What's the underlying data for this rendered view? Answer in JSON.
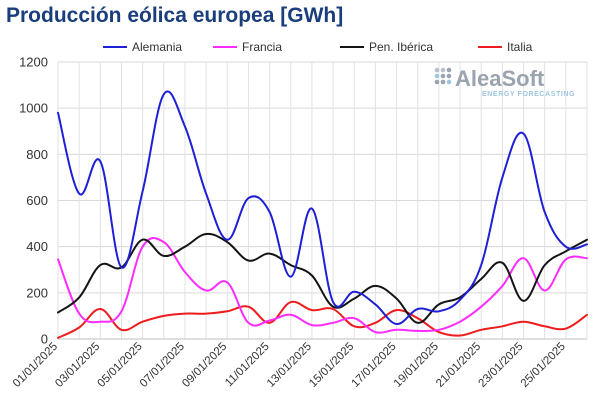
{
  "header": {
    "title": "Producción eólica europea [GWh]"
  },
  "logo": {
    "brand": "AleaSoft",
    "tagline": "ENERGY FORECASTING"
  },
  "colors": {
    "Alemania": "#1f1fd6",
    "Francia": "#ff2cff",
    "Pen. Ibérica": "#141414",
    "Italia": "#ee1c1c"
  },
  "chart_data": {
    "type": "line",
    "title": "Producción eólica europea [GWh]",
    "xlabel": "",
    "ylabel": "",
    "ylim": [
      0,
      1200
    ],
    "yticks": [
      0,
      200,
      400,
      600,
      800,
      1000,
      1200
    ],
    "grid": true,
    "legend_position": "top",
    "x": [
      "01/01/2025",
      "02/01/2025",
      "03/01/2025",
      "04/01/2025",
      "05/01/2025",
      "06/01/2025",
      "07/01/2025",
      "08/01/2025",
      "09/01/2025",
      "10/01/2025",
      "11/01/2025",
      "12/01/2025",
      "13/01/2025",
      "14/01/2025",
      "15/01/2025",
      "16/01/2025",
      "17/01/2025",
      "18/01/2025",
      "19/01/2025",
      "20/01/2025",
      "21/01/2025",
      "22/01/2025",
      "23/01/2025",
      "24/01/2025",
      "25/01/2025",
      "26/01/2025"
    ],
    "xtick_labels": [
      "01/01/2025",
      "03/01/2025",
      "05/01/2025",
      "07/01/2025",
      "09/01/2025",
      "11/01/2025",
      "13/01/2025",
      "15/01/2025",
      "17/01/2025",
      "19/01/2025",
      "21/01/2025",
      "23/01/2025",
      "25/01/2025"
    ],
    "series": [
      {
        "name": "Alemania",
        "values": [
          980,
          630,
          770,
          310,
          640,
          1060,
          920,
          630,
          430,
          610,
          550,
          270,
          565,
          160,
          205,
          150,
          65,
          130,
          120,
          170,
          320,
          700,
          890,
          550,
          400,
          410
        ]
      },
      {
        "name": "Francia",
        "values": [
          345,
          110,
          75,
          120,
          400,
          420,
          290,
          210,
          245,
          70,
          80,
          105,
          60,
          70,
          90,
          30,
          40,
          35,
          40,
          75,
          140,
          230,
          350,
          210,
          345,
          350
        ]
      },
      {
        "name": "Pen. Ibérica",
        "values": [
          115,
          180,
          320,
          310,
          430,
          360,
          400,
          455,
          420,
          340,
          370,
          320,
          275,
          140,
          175,
          230,
          175,
          70,
          150,
          180,
          260,
          330,
          165,
          320,
          380,
          430
        ]
      },
      {
        "name": "Italia",
        "values": [
          5,
          50,
          130,
          40,
          75,
          100,
          110,
          110,
          120,
          140,
          70,
          160,
          125,
          130,
          55,
          70,
          125,
          90,
          30,
          15,
          40,
          55,
          75,
          55,
          45,
          105
        ]
      }
    ]
  }
}
